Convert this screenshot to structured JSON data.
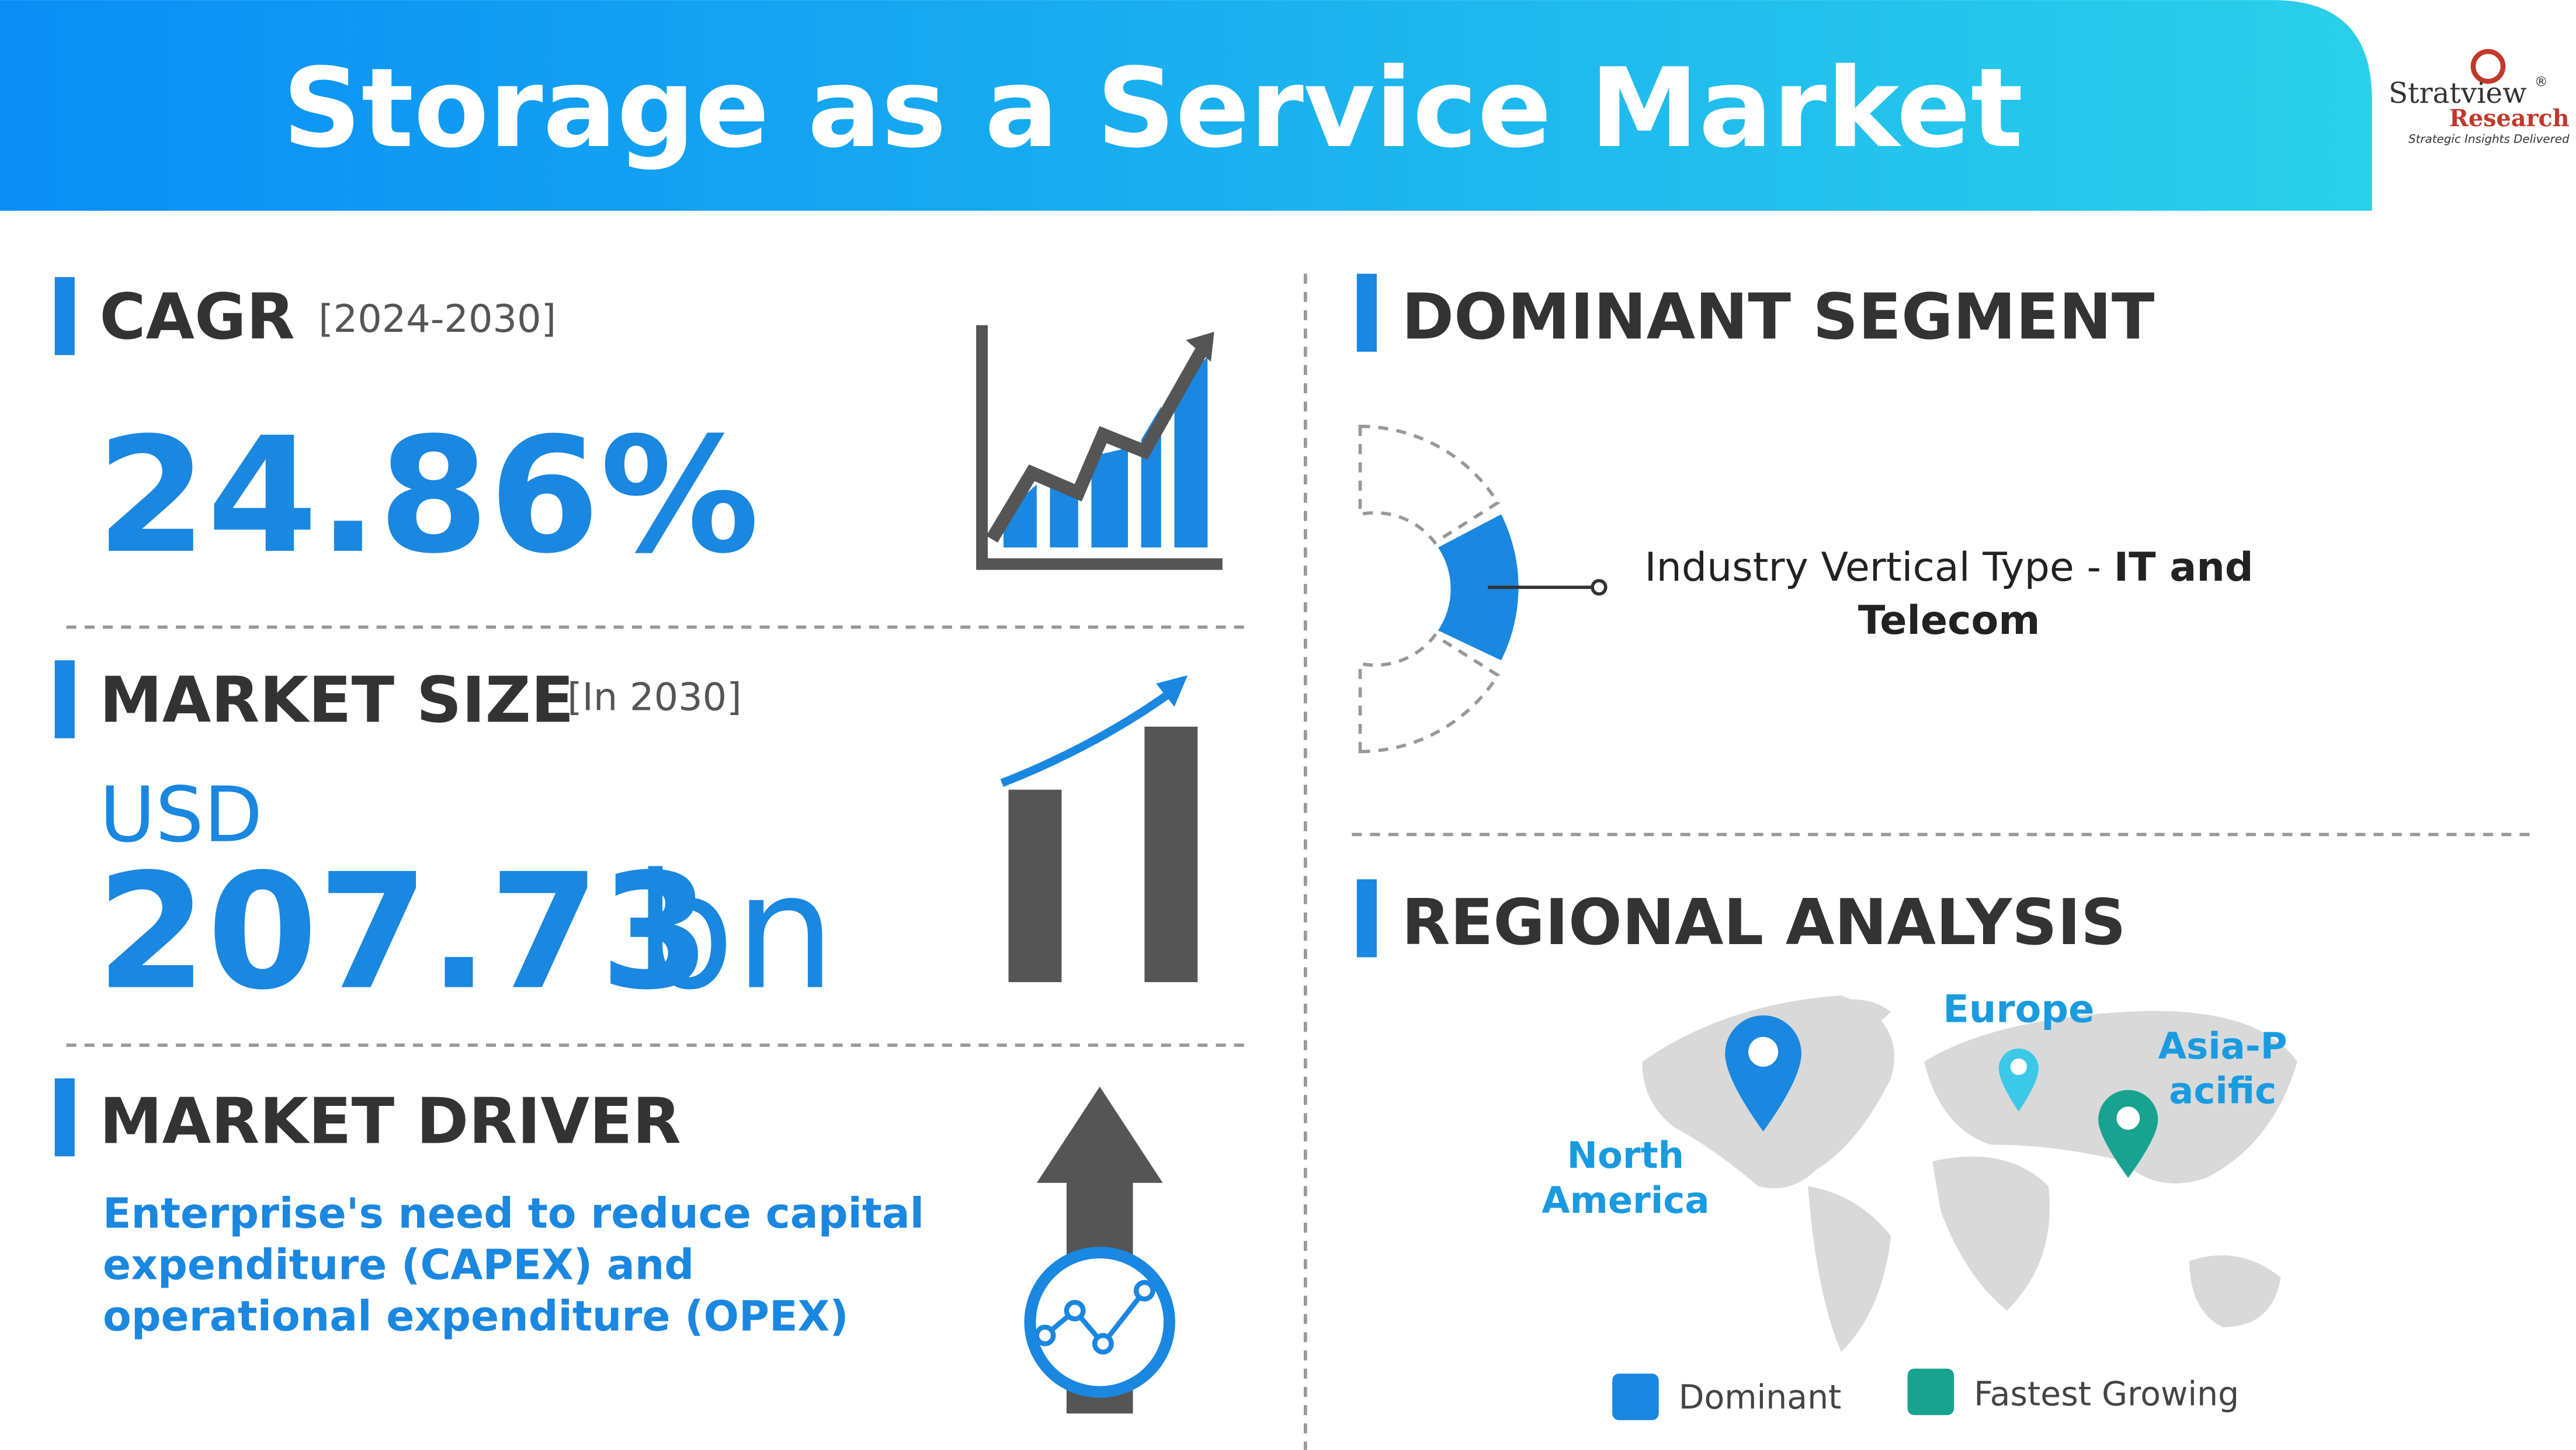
{
  "header": {
    "title": "Storage as a Service Market",
    "logo": {
      "name": "Stratview",
      "mark": "®",
      "sub": "Research",
      "tagline": "Strategic Insights Delivered"
    }
  },
  "cagr": {
    "label": "CAGR",
    "period": "[2024-2030]",
    "value": "24.86%"
  },
  "market_size": {
    "label": "MARKET SIZE",
    "period": "[In 2030]",
    "currency": "USD",
    "value": "207.73",
    "unit": "bn"
  },
  "market_driver": {
    "label": "MARKET DRIVER",
    "text": "Enterprise's need to reduce capital expenditure (CAPEX) and operational expenditure (OPEX)"
  },
  "dominant_segment": {
    "label": "DOMINANT SEGMENT",
    "text": "Industry Vertical Type - ",
    "highlight": "IT and Telecom"
  },
  "regional_analysis": {
    "label": "REGIONAL ANALYSIS",
    "regions": [
      "North America",
      "Europe",
      "Asia-Pacific"
    ],
    "legend": [
      "Dominant",
      "Fastest Growing"
    ]
  }
}
